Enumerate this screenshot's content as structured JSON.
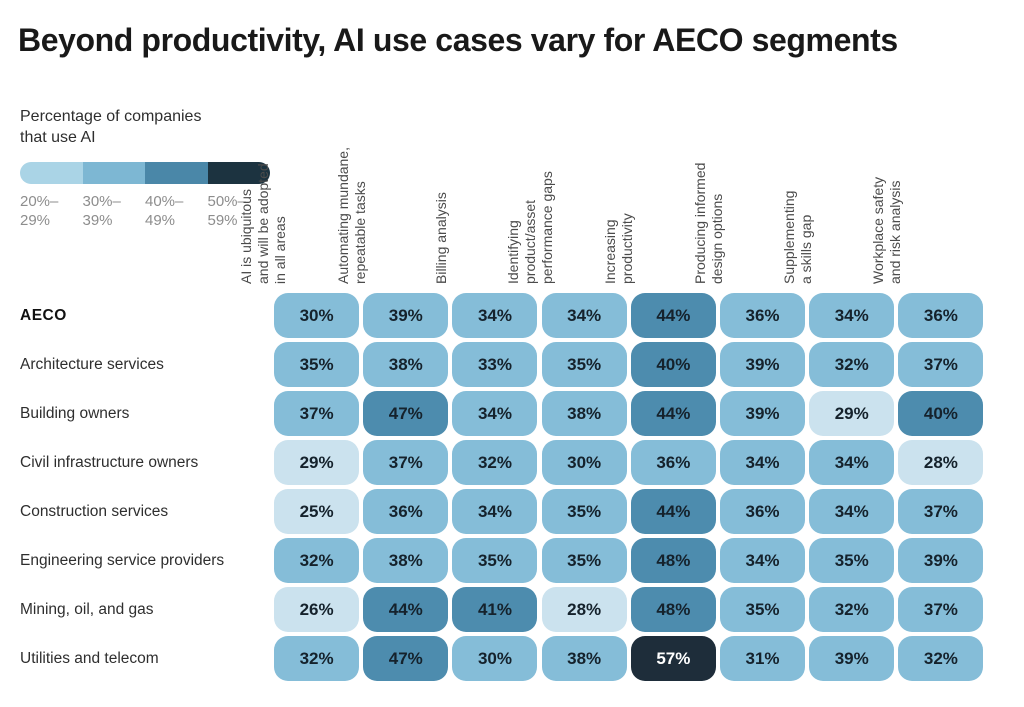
{
  "title": "Beyond productivity, AI use cases vary for AECO segments",
  "legend": {
    "title": "Percentage of companies\nthat use AI",
    "buckets": [
      {
        "label": "20%–\n29%",
        "color": "#aad4e6"
      },
      {
        "label": "30%–\n39%",
        "color": "#7db7d3"
      },
      {
        "label": "40%–\n49%",
        "color": "#4a87a8"
      },
      {
        "label": "50%–\n59%",
        "color": "#1c3340"
      }
    ]
  },
  "chart_data": {
    "type": "heatmap",
    "unit": "%",
    "value_range": [
      20,
      59
    ],
    "legend_position": "top-left",
    "columns": [
      "AI is ubiquitous\nand will be adopted\nin all areas",
      "Automating mundane,\nrepeatable tasks",
      "Billing analysis",
      "Identifying\nproduct/asset\nperformance gaps",
      "Increasing\nproductivity",
      "Producing informed\ndesign options",
      "Supplementing\na skills gap",
      "Workplace safety\nand risk analysis"
    ],
    "rows": [
      {
        "label": "AECO",
        "values": [
          30,
          39,
          34,
          34,
          44,
          36,
          34,
          36
        ]
      },
      {
        "label": "Architecture services",
        "values": [
          35,
          38,
          33,
          35,
          40,
          39,
          32,
          37
        ]
      },
      {
        "label": "Building owners",
        "values": [
          37,
          47,
          34,
          38,
          44,
          39,
          29,
          40
        ]
      },
      {
        "label": "Civil infrastructure owners",
        "values": [
          29,
          37,
          32,
          30,
          36,
          34,
          34,
          28
        ]
      },
      {
        "label": "Construction services",
        "values": [
          25,
          36,
          34,
          35,
          44,
          36,
          34,
          37
        ]
      },
      {
        "label": "Engineering service providers",
        "values": [
          32,
          38,
          35,
          35,
          48,
          34,
          35,
          39
        ]
      },
      {
        "label": "Mining, oil, and gas",
        "values": [
          26,
          44,
          41,
          28,
          48,
          35,
          32,
          37
        ]
      },
      {
        "label": "Utilities and telecom",
        "values": [
          32,
          47,
          30,
          38,
          57,
          31,
          39,
          32
        ]
      }
    ],
    "cell_colors": {
      "20-29": "#cbe2ee",
      "30-39": "#85bdd8",
      "40-49": "#4d8cae",
      "50-59": "#1e2d3a"
    }
  }
}
